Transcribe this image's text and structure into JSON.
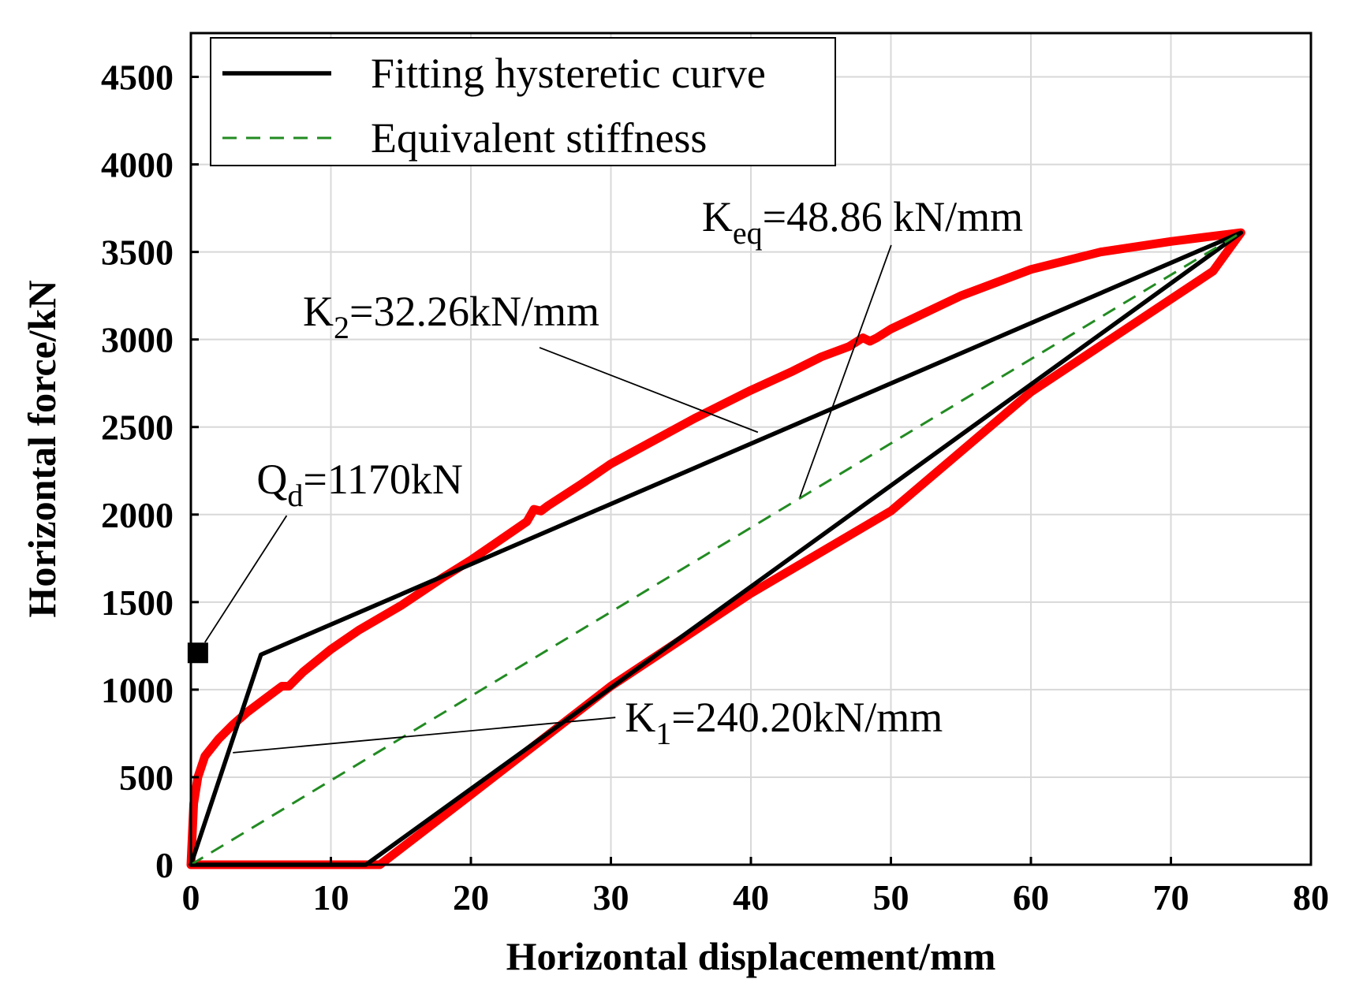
{
  "chart_data": {
    "type": "line",
    "xlabel": "Horizontal displacement/mm",
    "ylabel": "Horizontal force/kN",
    "xlim": [
      0,
      80
    ],
    "ylim": [
      0,
      4750
    ],
    "xticks": [
      0,
      10,
      20,
      30,
      40,
      50,
      60,
      70,
      80
    ],
    "yticks": [
      0,
      500,
      1000,
      1500,
      2000,
      2500,
      3000,
      3500,
      4000,
      4500
    ],
    "xtick_labels": [
      "0",
      "10",
      "20",
      "30",
      "40",
      "50",
      "60",
      "70",
      "80"
    ],
    "ytick_labels": [
      "0",
      "500",
      "1000",
      "1500",
      "2000",
      "2500",
      "3000",
      "3500",
      "4000",
      "4500"
    ],
    "grid": true,
    "legend": {
      "placement": "top-left",
      "entries": [
        {
          "label": "Fitting hysteretic curve",
          "color": "#000000",
          "style": "solid"
        },
        {
          "label": "Equivalent stiffness",
          "color": "#228B22",
          "style": "dashed"
        }
      ]
    },
    "series": [
      {
        "name": "",
        "color": "#ff0000",
        "style": "solid",
        "x": [
          0,
          0.2,
          0.5,
          1,
          2,
          3,
          4,
          5,
          6,
          6.5,
          7,
          8,
          10,
          12,
          15,
          18,
          20,
          22,
          24,
          24.5,
          25,
          25.5,
          28,
          30,
          33,
          36,
          40,
          43,
          45,
          47,
          48,
          48.5,
          49,
          50,
          55,
          60,
          65,
          70,
          73,
          75,
          73,
          60,
          50,
          40,
          30,
          20,
          13.5,
          13,
          0
        ],
        "y": [
          0,
          350,
          500,
          620,
          720,
          800,
          870,
          930,
          990,
          1020,
          1020,
          1100,
          1230,
          1340,
          1480,
          1640,
          1740,
          1850,
          1960,
          2030,
          2020,
          2050,
          2180,
          2290,
          2420,
          2550,
          2710,
          2820,
          2900,
          2960,
          3010,
          2990,
          3010,
          3060,
          3250,
          3400,
          3500,
          3560,
          3590,
          3610,
          3390,
          2700,
          2020,
          1550,
          1020,
          400,
          0,
          0,
          0
        ]
      },
      {
        "name": "",
        "color": "#000000",
        "style": "solid",
        "x": [
          0,
          5,
          75,
          12.5,
          0
        ],
        "y": [
          0,
          1200,
          3610,
          0,
          0
        ]
      },
      {
        "name": "",
        "color": "#228B22",
        "style": "dashed",
        "x": [
          0,
          75
        ],
        "y": [
          0,
          3610
        ]
      }
    ],
    "markers": [
      {
        "x": 0.5,
        "y": 1210,
        "shape": "square",
        "color": "#000000"
      }
    ],
    "annotations": [
      {
        "main": "K",
        "sub": "eq",
        "rest": "=48.86 kN/mm",
        "target": [
          43.5,
          2100
        ],
        "label_at": [
          36.5,
          3620
        ]
      },
      {
        "main": "K",
        "sub": "2",
        "rest": "=32.26kN/mm",
        "target": [
          40.5,
          2470
        ],
        "label_at": [
          8,
          3080
        ]
      },
      {
        "main": "Q",
        "sub": "d",
        "rest": "=1170kN",
        "target": [
          1,
          1270
        ],
        "label_at": [
          4.7,
          2120
        ]
      },
      {
        "main": "K",
        "sub": "1",
        "rest": "=240.20kN/mm",
        "target": [
          3,
          640
        ],
        "label_at": [
          31,
          760
        ]
      }
    ]
  }
}
